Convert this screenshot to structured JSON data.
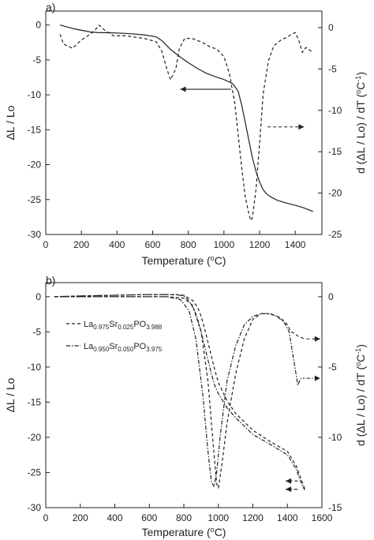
{
  "chart_data": [
    {
      "type": "line",
      "panel_label": "a)",
      "xlabel": "Temperature (",
      "xlabel_sup": "o",
      "xlabel_end": "C)",
      "ylabel": "ΔL / Lo",
      "y2label": "d (ΔL / Lo) / dT (",
      "y2label_sup1": "o",
      "y2label_mid": "C",
      "y2label_sup2": "-1",
      "y2label_end": ")",
      "xlim": [
        0,
        1550
      ],
      "ylim": [
        -30,
        2
      ],
      "y2lim": [
        -25,
        2
      ],
      "xticks": [
        "0",
        "200",
        "400",
        "600",
        "800",
        "1000",
        "1200",
        "1400"
      ],
      "yticks": [
        "0",
        "-5",
        "-10",
        "-15",
        "-20",
        "-25",
        "-30"
      ],
      "y2ticks": [
        "0",
        "-5",
        "-10",
        "-15",
        "-20",
        "-25"
      ],
      "series": [
        {
          "axis": "left",
          "style": "solid",
          "x": [
            80,
            150,
            250,
            300,
            350,
            450,
            550,
            620,
            650,
            700,
            750,
            800,
            850,
            900,
            950,
            1000,
            1050,
            1080,
            1100,
            1120,
            1140,
            1160,
            1180,
            1200,
            1220,
            1240,
            1260,
            1300,
            1350,
            1400,
            1450,
            1500
          ],
          "y": [
            0,
            -0.5,
            -1,
            -1.1,
            -1.1,
            -1.2,
            -1.4,
            -1.7,
            -2.2,
            -3.5,
            -4.5,
            -5.4,
            -6.2,
            -6.9,
            -7.4,
            -7.8,
            -8.4,
            -9.5,
            -11.5,
            -14,
            -16.5,
            -19,
            -21,
            -22.5,
            -23.6,
            -24.2,
            -24.6,
            -25.1,
            -25.5,
            -25.8,
            -26.2,
            -26.7
          ]
        },
        {
          "axis": "right",
          "style": "dashed",
          "x": [
            80,
            100,
            150,
            200,
            250,
            280,
            300,
            330,
            380,
            450,
            550,
            620,
            650,
            680,
            700,
            730,
            750,
            780,
            820,
            880,
            920,
            960,
            1000,
            1030,
            1060,
            1080,
            1100,
            1120,
            1140,
            1150,
            1160,
            1180,
            1200,
            1220,
            1250,
            1280,
            1320,
            1360,
            1380,
            1400,
            1420,
            1440,
            1460,
            1500
          ],
          "y": [
            -0.8,
            -2.0,
            -2.5,
            -1.5,
            -0.8,
            -0.2,
            0.3,
            -0.3,
            -1.0,
            -1.0,
            -1.3,
            -1.7,
            -2.8,
            -5.0,
            -6.3,
            -5.0,
            -2.5,
            -1.3,
            -1.3,
            -1.8,
            -2.3,
            -2.6,
            -3.5,
            -5.5,
            -9.0,
            -13.0,
            -17.0,
            -20.5,
            -22.5,
            -23.3,
            -23.0,
            -19.5,
            -14.0,
            -8.0,
            -4.0,
            -2.2,
            -1.5,
            -1.1,
            -0.8,
            -0.6,
            -1.5,
            -3.0,
            -2.4,
            -3.0
          ]
        }
      ],
      "annotations": [
        {
          "kind": "arrow",
          "x1": 1040,
          "y1": -9.2,
          "x2": 755,
          "y2": -9.2,
          "axis": "left",
          "style": "solid"
        },
        {
          "kind": "arrow",
          "x1": 1245,
          "y1": -12.0,
          "x2": 1450,
          "y2": -12.0,
          "axis": "right",
          "style": "dashed"
        }
      ]
    },
    {
      "type": "line",
      "panel_label": "b)",
      "xlabel": "Temperature (",
      "xlabel_sup": "o",
      "xlabel_end": "C)",
      "ylabel": "ΔL / Lo",
      "y2label": "d (ΔL / Lo) / dT (",
      "y2label_sup1": "o",
      "y2label_mid": "C",
      "y2label_sup2": "-1",
      "y2label_end": ")",
      "xlim": [
        0,
        1600
      ],
      "ylim": [
        -30,
        2
      ],
      "y2lim": [
        -15,
        1
      ],
      "xticks": [
        "0",
        "200",
        "400",
        "600",
        "800",
        "1000",
        "1200",
        "1400",
        "1600"
      ],
      "yticks": [
        "0",
        "-5",
        "-10",
        "-15",
        "-20",
        "-25",
        "-30"
      ],
      "y2ticks": [
        "0",
        "-5",
        "-10",
        "-15"
      ],
      "legend": [
        {
          "style": "dashed",
          "parts": [
            {
              "t": "La",
              "sub": false
            },
            {
              "t": "0.975",
              "sub": true
            },
            {
              "t": "Sr",
              "sub": false
            },
            {
              "t": "0.025",
              "sub": true
            },
            {
              "t": "PO",
              "sub": false
            },
            {
              "t": "3.988",
              "sub": true
            }
          ]
        },
        {
          "style": "dashdot",
          "parts": [
            {
              "t": "La",
              "sub": false
            },
            {
              "t": "0.950",
              "sub": true
            },
            {
              "t": "Sr",
              "sub": false
            },
            {
              "t": "0.050",
              "sub": true
            },
            {
              "t": "PO",
              "sub": false
            },
            {
              "t": "3.975",
              "sub": true
            }
          ]
        }
      ],
      "series": [
        {
          "axis": "left",
          "style": "dashed",
          "x": [
            50,
            200,
            400,
            600,
            750,
            800,
            850,
            880,
            900,
            920,
            940,
            960,
            980,
            1000,
            1050,
            1100,
            1200,
            1300,
            1400,
            1450,
            1480,
            1500
          ],
          "y": [
            0,
            0.1,
            0.2,
            0.3,
            0.3,
            0.2,
            -0.5,
            -1.5,
            -2.8,
            -4.5,
            -6.5,
            -8.5,
            -10.5,
            -12.2,
            -14.8,
            -16.6,
            -19.0,
            -20.6,
            -22.0,
            -24.0,
            -26.0,
            -27.3
          ]
        },
        {
          "axis": "left",
          "style": "dashdot",
          "x": [
            50,
            200,
            400,
            600,
            750,
            800,
            830,
            860,
            880,
            900,
            920,
            940,
            960,
            980,
            1000,
            1050,
            1100,
            1200,
            1300,
            1400,
            1450,
            1480,
            1500
          ],
          "y": [
            0,
            0.1,
            0.2,
            0.3,
            0.3,
            0.1,
            -0.6,
            -1.8,
            -3.2,
            -5.0,
            -7.0,
            -9.0,
            -11.0,
            -12.7,
            -13.8,
            -15.8,
            -17.2,
            -19.6,
            -21.0,
            -22.5,
            -24.5,
            -26.5,
            -27.5
          ]
        },
        {
          "axis": "right",
          "style": "dashed",
          "x": [
            50,
            300,
            500,
            700,
            800,
            850,
            900,
            940,
            970,
            990,
            1000,
            1020,
            1050,
            1100,
            1150,
            1200,
            1250,
            1280,
            1320,
            1360,
            1400,
            1420,
            1440,
            1460,
            1480,
            1500
          ],
          "y": [
            0,
            0,
            0,
            0,
            -0.1,
            -0.6,
            -2.5,
            -6.0,
            -10.5,
            -13.3,
            -13.6,
            -12.0,
            -9.0,
            -5.5,
            -3.0,
            -1.6,
            -1.2,
            -1.2,
            -1.3,
            -1.5,
            -2.0,
            -2.5,
            -2.6,
            -2.8,
            -2.9,
            -3.0
          ]
        },
        {
          "axis": "right",
          "style": "dashdot",
          "x": [
            50,
            300,
            500,
            700,
            780,
            830,
            870,
            910,
            940,
            960,
            975,
            990,
            1010,
            1050,
            1100,
            1150,
            1200,
            1250,
            1300,
            1340,
            1380,
            1410,
            1430,
            1450,
            1460,
            1470,
            1480,
            1500
          ],
          "y": [
            0,
            0,
            0,
            0,
            -0.2,
            -1.0,
            -3.0,
            -7.0,
            -11.0,
            -13.2,
            -13.5,
            -12.5,
            -10.0,
            -6.0,
            -3.5,
            -2.0,
            -1.4,
            -1.2,
            -1.2,
            -1.4,
            -1.8,
            -2.5,
            -4.0,
            -5.5,
            -6.3,
            -6.0,
            -5.8,
            -5.8
          ]
        }
      ],
      "annotations": [
        {
          "kind": "arrow",
          "x1": 1510,
          "y1": -3.0,
          "x2": 1590,
          "y2": -3.0,
          "axis": "right",
          "style": "dashed"
        },
        {
          "kind": "arrow",
          "x1": 1510,
          "y1": -5.8,
          "x2": 1590,
          "y2": -5.8,
          "axis": "right",
          "style": "dashdot"
        },
        {
          "kind": "arrow",
          "x1": 1460,
          "y1": -26.2,
          "x2": 1390,
          "y2": -26.2,
          "axis": "left",
          "style": "dashed"
        },
        {
          "kind": "arrow",
          "x1": 1460,
          "y1": -27.4,
          "x2": 1390,
          "y2": -27.4,
          "axis": "left",
          "style": "dashdot"
        }
      ]
    }
  ]
}
